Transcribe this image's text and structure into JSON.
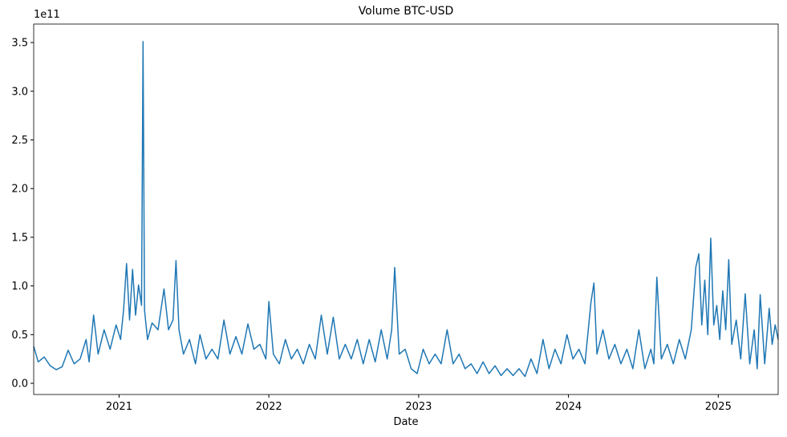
{
  "chart_data": {
    "type": "line",
    "title": "Volume BTC-USD",
    "xlabel": "Date",
    "y_offset_label": "1e11",
    "x": [
      2020.43,
      2020.46,
      2020.5,
      2020.54,
      2020.58,
      2020.62,
      2020.66,
      2020.7,
      2020.74,
      2020.78,
      2020.8,
      2020.83,
      2020.86,
      2020.9,
      2020.94,
      2020.98,
      2021.01,
      2021.03,
      2021.05,
      2021.07,
      2021.09,
      2021.11,
      2021.13,
      2021.15,
      2021.16,
      2021.17,
      2021.19,
      2021.22,
      2021.26,
      2021.3,
      2021.33,
      2021.36,
      2021.38,
      2021.4,
      2021.43,
      2021.47,
      2021.51,
      2021.54,
      2021.58,
      2021.62,
      2021.66,
      2021.7,
      2021.74,
      2021.78,
      2021.82,
      2021.86,
      2021.9,
      2021.94,
      2021.98,
      2022.0,
      2022.03,
      2022.07,
      2022.11,
      2022.15,
      2022.19,
      2022.23,
      2022.27,
      2022.31,
      2022.35,
      2022.39,
      2022.43,
      2022.47,
      2022.51,
      2022.55,
      2022.59,
      2022.63,
      2022.67,
      2022.71,
      2022.75,
      2022.79,
      2022.82,
      2022.84,
      2022.87,
      2022.91,
      2022.95,
      2022.99,
      2023.03,
      2023.07,
      2023.11,
      2023.15,
      2023.19,
      2023.23,
      2023.27,
      2023.31,
      2023.35,
      2023.39,
      2023.43,
      2023.47,
      2023.51,
      2023.55,
      2023.59,
      2023.63,
      2023.67,
      2023.71,
      2023.75,
      2023.79,
      2023.83,
      2023.87,
      2023.91,
      2023.95,
      2023.99,
      2024.03,
      2024.07,
      2024.11,
      2024.15,
      2024.17,
      2024.19,
      2024.23,
      2024.27,
      2024.31,
      2024.35,
      2024.39,
      2024.43,
      2024.47,
      2024.51,
      2024.55,
      2024.57,
      2024.59,
      2024.62,
      2024.66,
      2024.7,
      2024.74,
      2024.78,
      2024.82,
      2024.85,
      2024.87,
      2024.89,
      2024.91,
      2024.93,
      2024.95,
      2024.97,
      2024.99,
      2025.01,
      2025.03,
      2025.05,
      2025.07,
      2025.09,
      2025.12,
      2025.15,
      2025.18,
      2025.21,
      2025.24,
      2025.26,
      2025.28,
      2025.31,
      2025.34,
      2025.36,
      2025.38,
      2025.4
    ],
    "series": [
      {
        "color": "#1f77b4",
        "values": [
          0.38,
          0.22,
          0.27,
          0.18,
          0.14,
          0.17,
          0.34,
          0.2,
          0.25,
          0.45,
          0.22,
          0.7,
          0.3,
          0.55,
          0.35,
          0.6,
          0.45,
          0.75,
          1.23,
          0.65,
          1.17,
          0.7,
          1.01,
          0.8,
          3.51,
          0.75,
          0.45,
          0.62,
          0.55,
          0.97,
          0.55,
          0.65,
          1.26,
          0.55,
          0.3,
          0.45,
          0.2,
          0.5,
          0.25,
          0.35,
          0.25,
          0.65,
          0.3,
          0.48,
          0.3,
          0.61,
          0.35,
          0.4,
          0.25,
          0.84,
          0.3,
          0.2,
          0.45,
          0.25,
          0.35,
          0.2,
          0.4,
          0.25,
          0.7,
          0.3,
          0.68,
          0.25,
          0.4,
          0.25,
          0.45,
          0.2,
          0.45,
          0.22,
          0.55,
          0.25,
          0.55,
          1.19,
          0.3,
          0.35,
          0.15,
          0.1,
          0.35,
          0.2,
          0.3,
          0.2,
          0.55,
          0.2,
          0.3,
          0.15,
          0.2,
          0.1,
          0.22,
          0.1,
          0.18,
          0.08,
          0.15,
          0.08,
          0.15,
          0.07,
          0.25,
          0.1,
          0.45,
          0.15,
          0.35,
          0.2,
          0.5,
          0.25,
          0.35,
          0.2,
          0.83,
          1.03,
          0.3,
          0.55,
          0.25,
          0.4,
          0.2,
          0.35,
          0.15,
          0.55,
          0.15,
          0.35,
          0.2,
          1.09,
          0.25,
          0.4,
          0.2,
          0.45,
          0.25,
          0.55,
          1.19,
          1.33,
          0.6,
          1.06,
          0.5,
          1.49,
          0.6,
          0.8,
          0.45,
          0.95,
          0.55,
          1.27,
          0.4,
          0.65,
          0.25,
          0.92,
          0.2,
          0.55,
          0.15,
          0.91,
          0.2,
          0.77,
          0.4,
          0.6,
          0.45
        ]
      }
    ],
    "xlim": [
      2020.43,
      2025.4
    ],
    "xticks": [
      2021,
      2022,
      2023,
      2024,
      2025
    ],
    "ylim": [
      -0.115,
      3.69
    ],
    "yticks": [
      {
        "value": 0,
        "label": "0.0"
      },
      0.5,
      {
        "value": 1,
        "label": "1.0"
      },
      1.5,
      {
        "value": 2,
        "label": "2.0"
      },
      2.5,
      {
        "value": 3,
        "label": "3.0"
      },
      3.5
    ]
  }
}
